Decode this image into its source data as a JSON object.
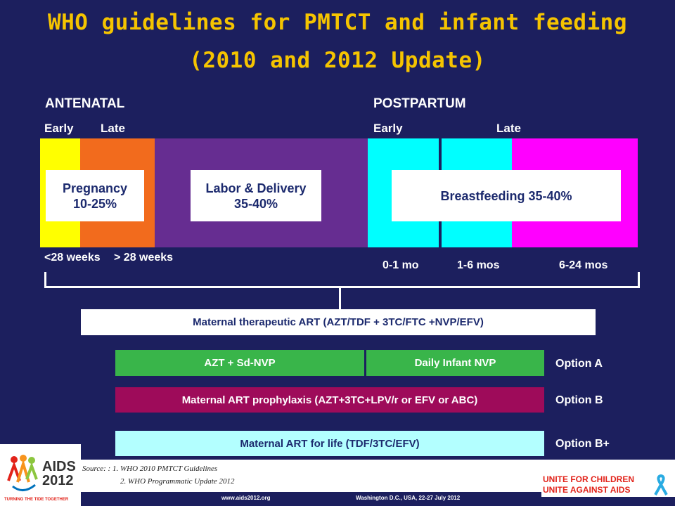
{
  "title": {
    "line1": "WHO guidelines for PMTCT and infant feeding",
    "line2": "(2010 and 2012 Update)"
  },
  "timeline": {
    "antenatal_label": "ANTENATAL",
    "postpartum_label": "POSTPARTUM",
    "antenatal_early": "Early",
    "antenatal_late": "Late",
    "postpartum_early": "Early",
    "postpartum_late": "Late",
    "pregnancy_line1": "Pregnancy",
    "pregnancy_line2": "10-25%",
    "labor_line1": "Labor & Delivery",
    "labor_line2": "35-40%",
    "breastfeeding": "Breastfeeding 35-40%",
    "tick_lt28": "<28 weeks",
    "tick_gt28": "> 28 weeks",
    "tick_0_1": "0-1 mo",
    "tick_1_6": "1-6 mos",
    "tick_6_24": "6-24 mos",
    "colors": {
      "early_antenatal": "#ffff00",
      "late_antenatal": "#f26b1d",
      "labor": "#662d91",
      "postpartum_early": "#00ffff",
      "postpartum_late": "#ff00ff"
    }
  },
  "regimens": {
    "therapeutic": "Maternal therapeutic ART (AZT/TDF + 3TC/FTC +NVP/EFV)",
    "option_a_left": "AZT + Sd-NVP",
    "option_a_right": "Daily Infant NVP",
    "option_a": "Option A",
    "option_b_bar": "Maternal ART prophylaxis  (AZT+3TC+LPV/r or EFV or ABC)",
    "option_b": "Option B",
    "option_bplus_bar": "Maternal ART for life  (TDF/3TC/EFV)",
    "option_bplus": "Option B+",
    "colors": {
      "option_a": "#39b54a",
      "option_b": "#9e0b5a",
      "option_bplus": "#b3ffff"
    }
  },
  "source": {
    "line1": "Source: : 1. WHO  2010 PMTCT Guidelines",
    "line2": "2. WHO Programmatic Update 2012"
  },
  "footer": {
    "url": "www.aids2012.org",
    "location": "Washington D.C., USA, 22-27 July 2012",
    "logo_text": "AIDS\n2012",
    "logo_tagline": "TURNING THE TIDE TOGETHER",
    "unite_line1": "UNITE FOR CHILDREN",
    "unite_line2": "UNITE AGAINST AIDS"
  }
}
